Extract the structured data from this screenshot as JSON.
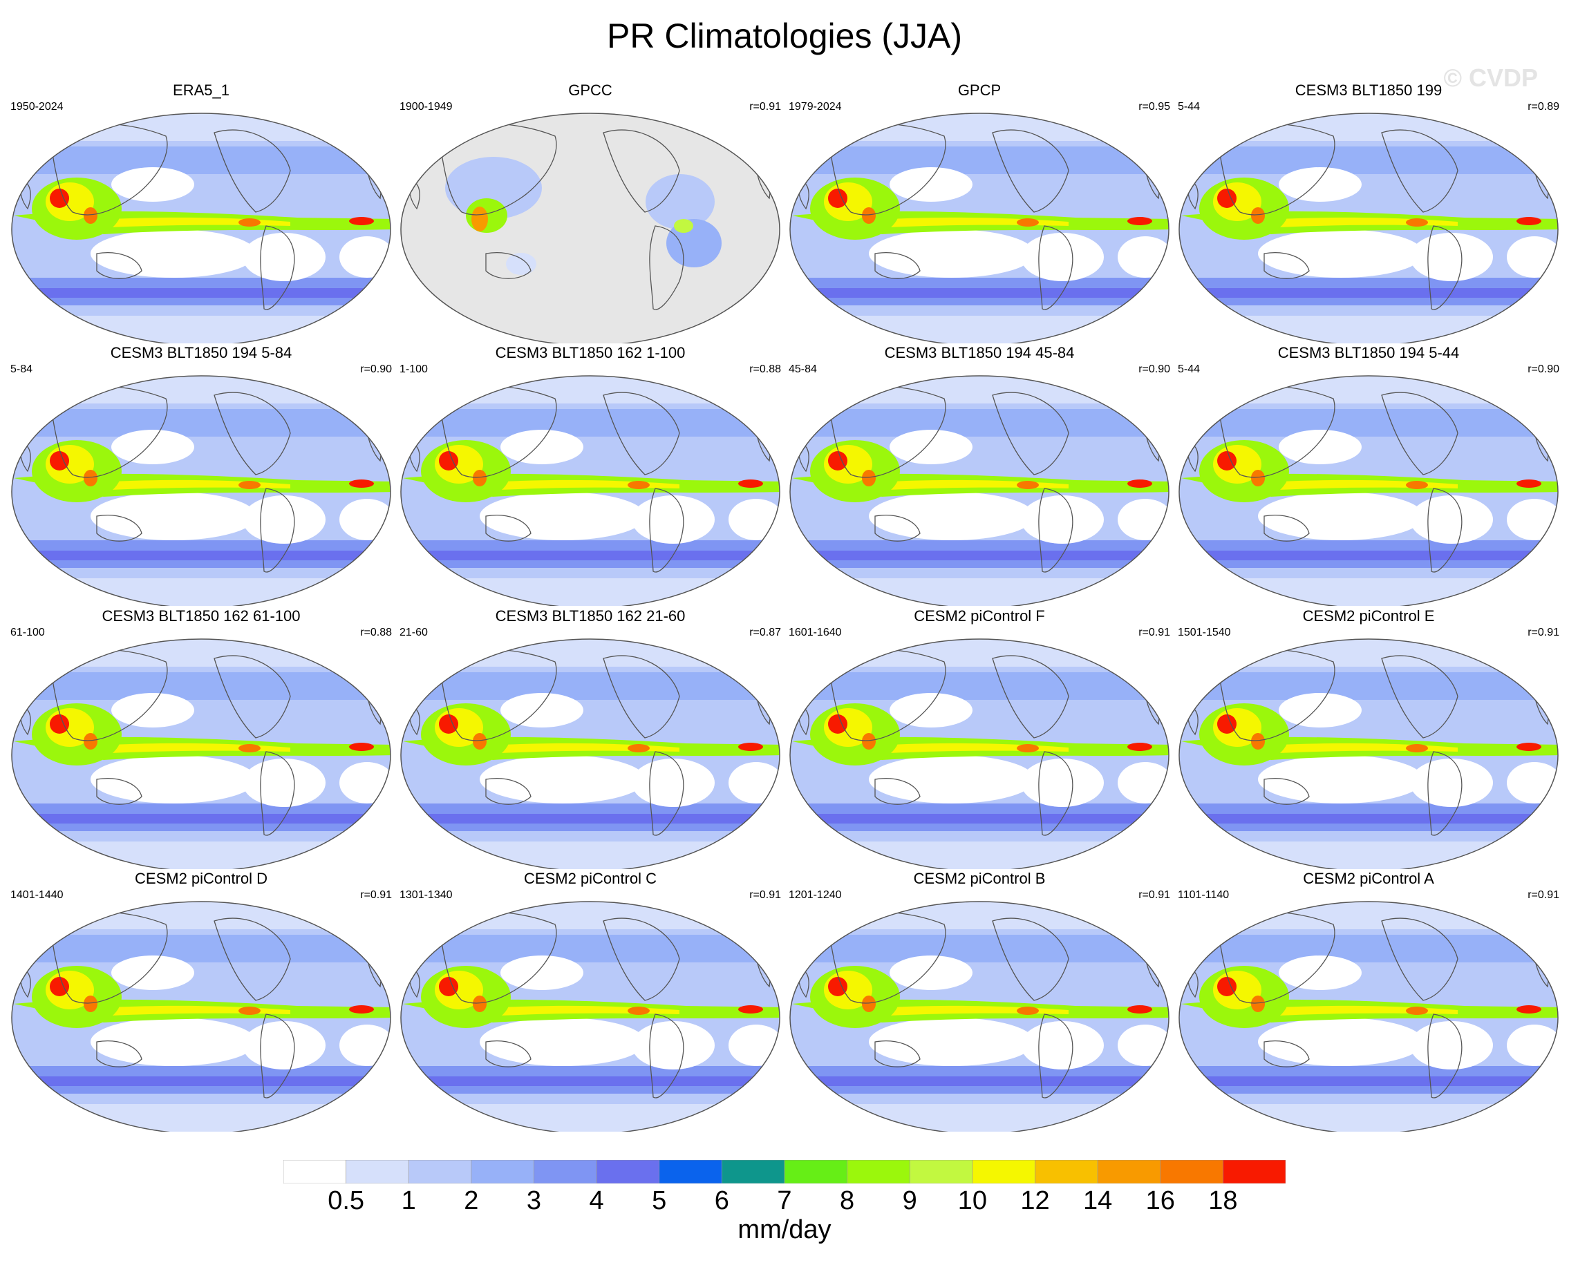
{
  "title": "PR Climatologies (JJA)",
  "watermark": "© CVDP",
  "units": "mm/day",
  "colorbar": {
    "colors": [
      "#ffffff",
      "#d6e0fb",
      "#b8c9f9",
      "#97b1f8",
      "#7f95f3",
      "#6a70ee",
      "#0a63ed",
      "#0e968c",
      "#66ee16",
      "#9bf70c",
      "#c2f840",
      "#f5f700",
      "#f8c000",
      "#f89a00",
      "#f87800",
      "#f81a00"
    ],
    "labels": [
      "0.5",
      "1",
      "2",
      "3",
      "4",
      "5",
      "6",
      "7",
      "8",
      "9",
      "10",
      "12",
      "14",
      "16",
      "18"
    ]
  },
  "panels": [
    {
      "title": "ERA5_1",
      "years": "1950-2024",
      "corr": "",
      "variant": "full"
    },
    {
      "title": "GPCC",
      "years": "1900-1949",
      "corr": "r=0.91",
      "variant": "land"
    },
    {
      "title": "GPCP",
      "years": "1979-2024",
      "corr": "r=0.95",
      "variant": "full"
    },
    {
      "title": "CESM3 BLT1850 199",
      "years": "5-44",
      "corr": "r=0.89",
      "variant": "full"
    },
    {
      "title": "CESM3 BLT1850 194 5-84",
      "years": "5-84",
      "corr": "r=0.90",
      "variant": "full"
    },
    {
      "title": "CESM3 BLT1850 162 1-100",
      "years": "1-100",
      "corr": "r=0.88",
      "variant": "full"
    },
    {
      "title": "CESM3 BLT1850 194 45-84",
      "years": "45-84",
      "corr": "r=0.90",
      "variant": "full"
    },
    {
      "title": "CESM3 BLT1850 194 5-44",
      "years": "5-44",
      "corr": "r=0.90",
      "variant": "full"
    },
    {
      "title": "CESM3 BLT1850 162 61-100",
      "years": "61-100",
      "corr": "r=0.88",
      "variant": "full"
    },
    {
      "title": "CESM3 BLT1850 162 21-60",
      "years": "21-60",
      "corr": "r=0.87",
      "variant": "full"
    },
    {
      "title": "CESM2 piControl F",
      "years": "1601-1640",
      "corr": "r=0.91",
      "variant": "full"
    },
    {
      "title": "CESM2 piControl E",
      "years": "1501-1540",
      "corr": "r=0.91",
      "variant": "full"
    },
    {
      "title": "CESM2 piControl D",
      "years": "1401-1440",
      "corr": "r=0.91",
      "variant": "full"
    },
    {
      "title": "CESM2 piControl C",
      "years": "1301-1340",
      "corr": "r=0.91",
      "variant": "full"
    },
    {
      "title": "CESM2 piControl B",
      "years": "1201-1240",
      "corr": "r=0.91",
      "variant": "full"
    },
    {
      "title": "CESM2 piControl A",
      "years": "1101-1140",
      "corr": "r=0.91",
      "variant": "full"
    }
  ]
}
